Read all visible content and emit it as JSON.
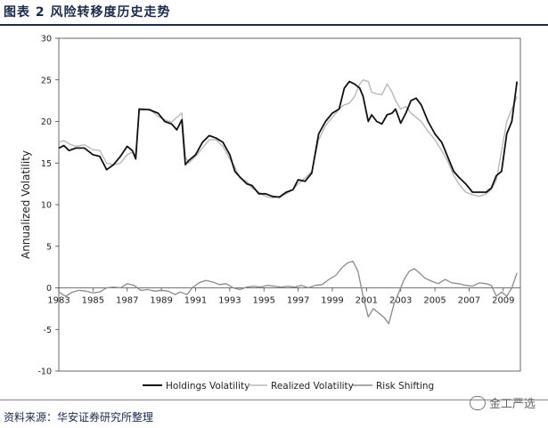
{
  "figure": {
    "title": "图表 2 风险转移度历史走势",
    "source": "资料来源：华安证券研究所整理",
    "watermark": "金工严选",
    "watermark_icon": "wechat-icon"
  },
  "chart_data": {
    "type": "line",
    "ylabel": "Annualized Volatility",
    "xlabel": "",
    "ylim": [
      -10,
      30
    ],
    "xlim": [
      1983,
      2010
    ],
    "y_ticks": [
      -10,
      -5,
      0,
      5,
      10,
      15,
      20,
      25,
      30
    ],
    "x_ticks": [
      1983,
      1985,
      1987,
      1989,
      1991,
      1993,
      1995,
      1997,
      1999,
      2001,
      2003,
      2005,
      2007,
      2009
    ],
    "grid": false,
    "legend_position": "bottom",
    "colors": {
      "Holdings Volatility": "#111111",
      "Realized Volatility": "#b8b8b8",
      "Risk Shifting": "#8a8a8a"
    },
    "series": [
      {
        "name": "Holdings Volatility",
        "points": [
          [
            1983.0,
            16.8
          ],
          [
            1983.3,
            17.1
          ],
          [
            1983.6,
            16.5
          ],
          [
            1984.0,
            16.8
          ],
          [
            1984.5,
            16.8
          ],
          [
            1985.0,
            16.0
          ],
          [
            1985.4,
            15.8
          ],
          [
            1985.8,
            14.2
          ],
          [
            1986.2,
            14.8
          ],
          [
            1986.6,
            15.8
          ],
          [
            1987.0,
            17.0
          ],
          [
            1987.3,
            16.5
          ],
          [
            1987.5,
            15.5
          ],
          [
            1987.7,
            21.5
          ],
          [
            1988.3,
            21.4
          ],
          [
            1988.8,
            21.0
          ],
          [
            1989.2,
            20.0
          ],
          [
            1989.6,
            19.7
          ],
          [
            1989.9,
            19.0
          ],
          [
            1990.2,
            20.2
          ],
          [
            1990.4,
            14.8
          ],
          [
            1990.6,
            15.3
          ],
          [
            1991.0,
            16.0
          ],
          [
            1991.4,
            17.5
          ],
          [
            1991.8,
            18.3
          ],
          [
            1992.2,
            18.0
          ],
          [
            1992.6,
            17.5
          ],
          [
            1993.0,
            16.0
          ],
          [
            1993.3,
            14.0
          ],
          [
            1993.6,
            13.3
          ],
          [
            1994.0,
            12.5
          ],
          [
            1994.3,
            12.3
          ],
          [
            1994.7,
            11.3
          ],
          [
            1995.1,
            11.3
          ],
          [
            1995.5,
            11.0
          ],
          [
            1995.9,
            10.9
          ],
          [
            1996.3,
            11.5
          ],
          [
            1996.7,
            11.8
          ],
          [
            1997.0,
            13.0
          ],
          [
            1997.4,
            12.8
          ],
          [
            1997.8,
            13.8
          ],
          [
            1998.2,
            18.5
          ],
          [
            1998.6,
            20.0
          ],
          [
            1999.0,
            21.0
          ],
          [
            1999.4,
            21.5
          ],
          [
            1999.7,
            24.0
          ],
          [
            2000.0,
            24.8
          ],
          [
            2000.3,
            24.5
          ],
          [
            2000.6,
            24.0
          ],
          [
            2000.8,
            23.0
          ],
          [
            2001.1,
            20.0
          ],
          [
            2001.3,
            20.8
          ],
          [
            2001.6,
            20.0
          ],
          [
            2001.9,
            19.7
          ],
          [
            2002.2,
            20.8
          ],
          [
            2002.5,
            21.0
          ],
          [
            2002.7,
            21.5
          ],
          [
            2003.0,
            19.8
          ],
          [
            2003.3,
            21.0
          ],
          [
            2003.6,
            22.5
          ],
          [
            2003.9,
            22.8
          ],
          [
            2004.2,
            22.0
          ],
          [
            2004.6,
            20.0
          ],
          [
            2005.0,
            18.5
          ],
          [
            2005.4,
            17.5
          ],
          [
            2005.8,
            15.5
          ],
          [
            2006.1,
            14.0
          ],
          [
            2006.4,
            13.3
          ],
          [
            2006.8,
            12.5
          ],
          [
            2007.2,
            11.5
          ],
          [
            2007.6,
            11.5
          ],
          [
            2008.0,
            11.5
          ],
          [
            2008.3,
            12.0
          ],
          [
            2008.6,
            13.5
          ],
          [
            2008.9,
            14.0
          ],
          [
            2009.2,
            18.5
          ],
          [
            2009.5,
            20.0
          ],
          [
            2009.8,
            24.8
          ]
        ]
      },
      {
        "name": "Realized Volatility",
        "points": [
          [
            1983.0,
            17.5
          ],
          [
            1983.3,
            17.7
          ],
          [
            1983.6,
            17.3
          ],
          [
            1984.0,
            17.0
          ],
          [
            1984.5,
            17.2
          ],
          [
            1985.0,
            16.6
          ],
          [
            1985.4,
            16.5
          ],
          [
            1985.8,
            15.0
          ],
          [
            1986.2,
            14.8
          ],
          [
            1986.6,
            15.0
          ],
          [
            1987.0,
            16.0
          ],
          [
            1987.3,
            16.3
          ],
          [
            1987.5,
            16.0
          ],
          [
            1987.7,
            21.3
          ],
          [
            1988.3,
            21.5
          ],
          [
            1988.8,
            20.6
          ],
          [
            1989.2,
            20.2
          ],
          [
            1989.6,
            19.9
          ],
          [
            1989.9,
            20.5
          ],
          [
            1990.2,
            21.0
          ],
          [
            1990.4,
            15.8
          ],
          [
            1990.6,
            15.0
          ],
          [
            1991.0,
            15.8
          ],
          [
            1991.4,
            16.8
          ],
          [
            1991.8,
            17.8
          ],
          [
            1992.2,
            17.8
          ],
          [
            1992.6,
            17.0
          ],
          [
            1993.0,
            15.5
          ],
          [
            1993.3,
            14.5
          ],
          [
            1993.6,
            13.2
          ],
          [
            1994.0,
            12.8
          ],
          [
            1994.3,
            12.0
          ],
          [
            1994.7,
            11.5
          ],
          [
            1995.1,
            11.0
          ],
          [
            1995.5,
            10.8
          ],
          [
            1995.9,
            11.0
          ],
          [
            1996.3,
            11.3
          ],
          [
            1996.7,
            11.8
          ],
          [
            1997.0,
            12.5
          ],
          [
            1997.4,
            13.2
          ],
          [
            1997.8,
            14.0
          ],
          [
            1998.2,
            17.8
          ],
          [
            1998.6,
            19.5
          ],
          [
            1999.0,
            20.5
          ],
          [
            1999.4,
            21.5
          ],
          [
            1999.7,
            22.0
          ],
          [
            2000.0,
            22.2
          ],
          [
            2000.3,
            23.0
          ],
          [
            2000.6,
            24.5
          ],
          [
            2000.8,
            25.0
          ],
          [
            2001.1,
            24.8
          ],
          [
            2001.3,
            23.5
          ],
          [
            2001.6,
            23.3
          ],
          [
            2001.9,
            23.2
          ],
          [
            2002.2,
            24.5
          ],
          [
            2002.5,
            23.5
          ],
          [
            2002.7,
            22.5
          ],
          [
            2003.0,
            21.5
          ],
          [
            2003.3,
            21.8
          ],
          [
            2003.6,
            21.0
          ],
          [
            2003.9,
            20.5
          ],
          [
            2004.2,
            20.0
          ],
          [
            2004.6,
            18.8
          ],
          [
            2005.0,
            17.8
          ],
          [
            2005.4,
            16.5
          ],
          [
            2005.8,
            15.0
          ],
          [
            2006.1,
            13.5
          ],
          [
            2006.4,
            12.5
          ],
          [
            2006.8,
            11.5
          ],
          [
            2007.2,
            11.2
          ],
          [
            2007.6,
            11.0
          ],
          [
            2008.0,
            11.3
          ],
          [
            2008.3,
            11.8
          ],
          [
            2008.6,
            13.0
          ],
          [
            2008.9,
            16.5
          ],
          [
            2009.2,
            20.0
          ],
          [
            2009.5,
            21.5
          ],
          [
            2009.8,
            23.0
          ]
        ]
      },
      {
        "name": "Risk Shifting",
        "points": [
          [
            1983.0,
            -0.5
          ],
          [
            1983.4,
            -1.0
          ],
          [
            1983.8,
            -0.5
          ],
          [
            1984.2,
            -0.3
          ],
          [
            1984.6,
            -0.4
          ],
          [
            1985.0,
            -0.6
          ],
          [
            1985.4,
            -0.5
          ],
          [
            1985.8,
            0.0
          ],
          [
            1986.2,
            0.1
          ],
          [
            1986.6,
            0.0
          ],
          [
            1987.0,
            0.5
          ],
          [
            1987.4,
            0.3
          ],
          [
            1987.8,
            -0.3
          ],
          [
            1988.2,
            -0.2
          ],
          [
            1988.6,
            -0.4
          ],
          [
            1989.0,
            -0.3
          ],
          [
            1989.4,
            -0.4
          ],
          [
            1989.8,
            -0.8
          ],
          [
            1990.1,
            -0.5
          ],
          [
            1990.5,
            -0.8
          ],
          [
            1990.8,
            0.0
          ],
          [
            1991.2,
            0.6
          ],
          [
            1991.6,
            0.9
          ],
          [
            1992.0,
            0.7
          ],
          [
            1992.4,
            0.4
          ],
          [
            1992.8,
            0.5
          ],
          [
            1993.2,
            0.0
          ],
          [
            1993.6,
            -0.2
          ],
          [
            1994.0,
            0.1
          ],
          [
            1994.4,
            0.2
          ],
          [
            1994.8,
            0.1
          ],
          [
            1995.2,
            0.3
          ],
          [
            1995.6,
            0.2
          ],
          [
            1996.0,
            0.1
          ],
          [
            1996.4,
            0.2
          ],
          [
            1996.8,
            0.1
          ],
          [
            1997.2,
            0.3
          ],
          [
            1997.6,
            0.0
          ],
          [
            1998.0,
            0.3
          ],
          [
            1998.4,
            0.4
          ],
          [
            1998.8,
            1.0
          ],
          [
            1999.2,
            1.5
          ],
          [
            1999.6,
            2.5
          ],
          [
            1999.9,
            3.0
          ],
          [
            2000.2,
            3.2
          ],
          [
            2000.5,
            2.0
          ],
          [
            2000.8,
            -1.0
          ],
          [
            2001.1,
            -3.5
          ],
          [
            2001.4,
            -2.5
          ],
          [
            2001.7,
            -3.0
          ],
          [
            2002.0,
            -3.5
          ],
          [
            2002.3,
            -4.3
          ],
          [
            2002.6,
            -2.0
          ],
          [
            2002.9,
            -0.5
          ],
          [
            2003.2,
            1.0
          ],
          [
            2003.5,
            2.0
          ],
          [
            2003.8,
            2.3
          ],
          [
            2004.1,
            1.8
          ],
          [
            2004.4,
            1.2
          ],
          [
            2004.8,
            0.8
          ],
          [
            2005.2,
            0.5
          ],
          [
            2005.6,
            1.0
          ],
          [
            2006.0,
            0.6
          ],
          [
            2006.4,
            0.5
          ],
          [
            2006.8,
            0.3
          ],
          [
            2007.2,
            0.2
          ],
          [
            2007.6,
            0.6
          ],
          [
            2008.0,
            0.5
          ],
          [
            2008.3,
            0.3
          ],
          [
            2008.6,
            -1.0
          ],
          [
            2008.9,
            -0.5
          ],
          [
            2009.2,
            -1.0
          ],
          [
            2009.5,
            0.0
          ],
          [
            2009.8,
            1.8
          ]
        ]
      }
    ]
  }
}
